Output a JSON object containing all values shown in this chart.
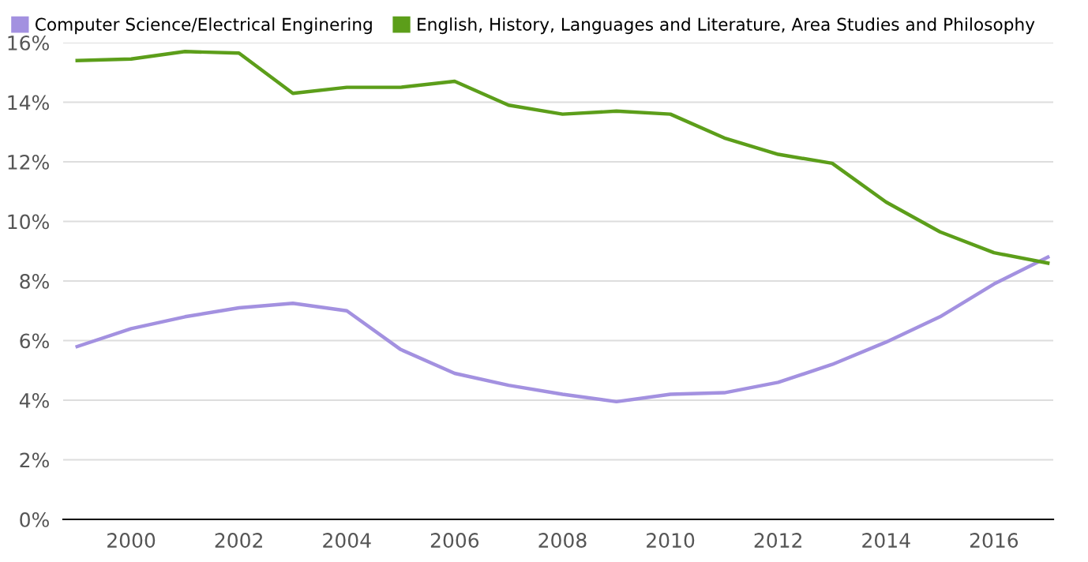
{
  "chart_data": {
    "type": "line",
    "x": [
      1999,
      2000,
      2001,
      2002,
      2003,
      2004,
      2005,
      2006,
      2007,
      2008,
      2009,
      2010,
      2011,
      2012,
      2013,
      2014,
      2015,
      2016,
      2017
    ],
    "series": [
      {
        "name": "Computer Science/Electrical Enginering",
        "color": "#a391e0",
        "values": [
          5.8,
          6.4,
          6.8,
          7.1,
          7.25,
          7.0,
          5.7,
          4.9,
          4.5,
          4.2,
          3.95,
          4.2,
          4.25,
          4.6,
          5.2,
          5.95,
          6.8,
          7.9,
          8.8
        ]
      },
      {
        "name": "English, History, Languages and Literature, Area Studies and Philosophy",
        "color": "#5c9e1a",
        "values": [
          15.4,
          15.45,
          15.7,
          15.65,
          14.3,
          14.5,
          14.5,
          14.7,
          13.9,
          13.6,
          13.7,
          13.6,
          12.8,
          12.25,
          11.95,
          10.65,
          9.65,
          8.95,
          8.6
        ]
      }
    ],
    "xlim": [
      1998.74,
      2017.1
    ],
    "xticks": [
      2000,
      2002,
      2004,
      2006,
      2008,
      2010,
      2012,
      2014,
      2016
    ],
    "ylim": [
      0,
      16
    ],
    "yticks": [
      {
        "value": 0,
        "label": "0%"
      },
      {
        "value": 2,
        "label": "2%"
      },
      {
        "value": 4,
        "label": "4%"
      },
      {
        "value": 6,
        "label": "6%"
      },
      {
        "value": 8,
        "label": "8%"
      },
      {
        "value": 10,
        "label": "10%"
      },
      {
        "value": 12,
        "label": "12%"
      },
      {
        "value": 14,
        "label": "14%"
      },
      {
        "value": 16,
        "label": "16%"
      }
    ],
    "grid": "y",
    "legend": "top left",
    "marker": "none",
    "line_style": "solid"
  }
}
